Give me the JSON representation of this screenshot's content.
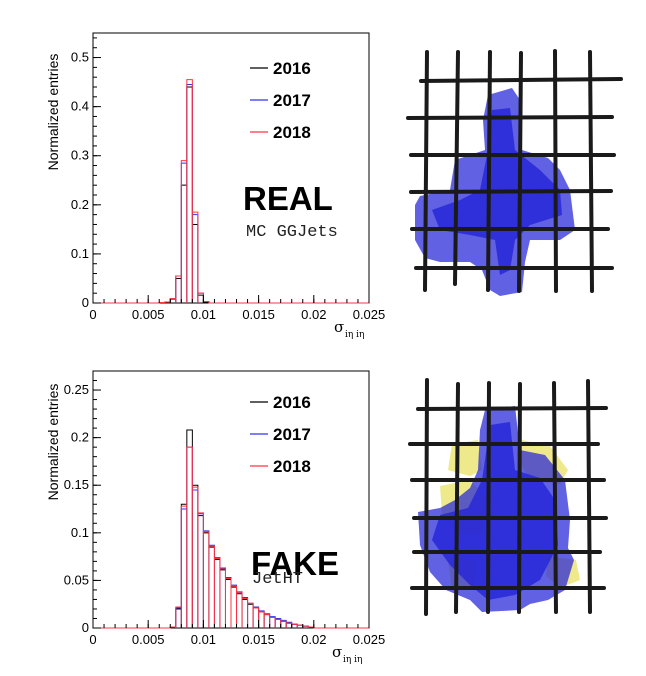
{
  "chart_data": [
    {
      "type": "histogram",
      "ylabel": "Normalized entries",
      "xlabel": "σ",
      "xlabel_sub": "iη iη",
      "xlim": [
        0,
        0.025
      ],
      "ylim": [
        0,
        0.55
      ],
      "yticks": [
        "0",
        "0.1",
        "0.2",
        "0.3",
        "0.4",
        "0.5"
      ],
      "xticks": [
        "0",
        "0.005",
        "0.01",
        "0.015",
        "0.02",
        "0.025"
      ],
      "annotation": "REAL",
      "annotation_sub": "MC GGJets",
      "bin_width": 0.0005,
      "series": [
        {
          "name": "2016",
          "color": "#000000",
          "bins": [
            [
              0.006,
              0.001
            ],
            [
              0.0065,
              0.002
            ],
            [
              0.007,
              0.008
            ],
            [
              0.0075,
              0.05
            ],
            [
              0.008,
              0.24
            ],
            [
              0.0085,
              0.44
            ],
            [
              0.009,
              0.16
            ],
            [
              0.0095,
              0.016
            ],
            [
              0.01,
              0.002
            ]
          ]
        },
        {
          "name": "2017",
          "color": "#3333ee",
          "bins": [
            [
              0.006,
              0.001
            ],
            [
              0.0065,
              0.002
            ],
            [
              0.007,
              0.009
            ],
            [
              0.0075,
              0.055
            ],
            [
              0.008,
              0.285
            ],
            [
              0.0085,
              0.445
            ],
            [
              0.009,
              0.18
            ],
            [
              0.0095,
              0.02
            ],
            [
              0.01,
              0.003
            ]
          ]
        },
        {
          "name": "2018",
          "color": "#ff3344",
          "bins": [
            [
              0.006,
              0.001
            ],
            [
              0.0065,
              0.002
            ],
            [
              0.007,
              0.009
            ],
            [
              0.0075,
              0.055
            ],
            [
              0.008,
              0.29
            ],
            [
              0.0085,
              0.455
            ],
            [
              0.009,
              0.185
            ],
            [
              0.0095,
              0.02
            ],
            [
              0.01,
              0.003
            ]
          ]
        }
      ]
    },
    {
      "type": "histogram",
      "ylabel": "Normalized entries",
      "xlabel": "σ",
      "xlabel_sub": "iη iη",
      "xlim": [
        0,
        0.025
      ],
      "ylim": [
        0,
        0.27
      ],
      "yticks": [
        "0",
        "0.05",
        "0.1",
        "0.15",
        "0.2",
        "0.25"
      ],
      "xticks": [
        "0",
        "0.005",
        "0.01",
        "0.015",
        "0.02",
        "0.025"
      ],
      "annotation": "FAKE",
      "annotation_sub": "JetHT",
      "bin_width": 0.0005,
      "series": [
        {
          "name": "2016",
          "color": "#000000",
          "bins": [
            [
              0.007,
              0.001
            ],
            [
              0.0075,
              0.02
            ],
            [
              0.008,
              0.13
            ],
            [
              0.0085,
              0.208
            ],
            [
              0.009,
              0.15
            ],
            [
              0.0095,
              0.118
            ],
            [
              0.01,
              0.1
            ],
            [
              0.0105,
              0.085
            ],
            [
              0.011,
              0.072
            ],
            [
              0.0115,
              0.061
            ],
            [
              0.012,
              0.051
            ],
            [
              0.0125,
              0.043
            ],
            [
              0.013,
              0.036
            ],
            [
              0.0135,
              0.03
            ],
            [
              0.014,
              0.025
            ],
            [
              0.0145,
              0.021
            ],
            [
              0.015,
              0.017
            ],
            [
              0.0155,
              0.014
            ],
            [
              0.016,
              0.011
            ],
            [
              0.0165,
              0.009
            ],
            [
              0.017,
              0.007
            ],
            [
              0.0175,
              0.005
            ],
            [
              0.018,
              0.004
            ],
            [
              0.0185,
              0.003
            ],
            [
              0.019,
              0.002
            ],
            [
              0.0195,
              0.001
            ]
          ]
        },
        {
          "name": "2017",
          "color": "#3333ee",
          "bins": [
            [
              0.007,
              0.001
            ],
            [
              0.0075,
              0.021
            ],
            [
              0.008,
              0.125
            ],
            [
              0.0085,
              0.19
            ],
            [
              0.009,
              0.145
            ],
            [
              0.0095,
              0.12
            ],
            [
              0.01,
              0.102
            ],
            [
              0.0105,
              0.087
            ],
            [
              0.011,
              0.074
            ],
            [
              0.0115,
              0.063
            ],
            [
              0.012,
              0.053
            ],
            [
              0.0125,
              0.045
            ],
            [
              0.013,
              0.038
            ],
            [
              0.0135,
              0.032
            ],
            [
              0.014,
              0.026
            ],
            [
              0.0145,
              0.022
            ],
            [
              0.015,
              0.018
            ],
            [
              0.0155,
              0.015
            ],
            [
              0.016,
              0.012
            ],
            [
              0.0165,
              0.01
            ],
            [
              0.017,
              0.008
            ],
            [
              0.0175,
              0.006
            ],
            [
              0.018,
              0.004
            ],
            [
              0.0185,
              0.003
            ],
            [
              0.019,
              0.002
            ],
            [
              0.0195,
              0.001
            ]
          ]
        },
        {
          "name": "2018",
          "color": "#ff3344",
          "bins": [
            [
              0.007,
              0.001
            ],
            [
              0.0075,
              0.022
            ],
            [
              0.008,
              0.128
            ],
            [
              0.0085,
              0.19
            ],
            [
              0.009,
              0.148
            ],
            [
              0.0095,
              0.121
            ],
            [
              0.01,
              0.101
            ],
            [
              0.0105,
              0.086
            ],
            [
              0.011,
              0.073
            ],
            [
              0.0115,
              0.062
            ],
            [
              0.012,
              0.052
            ],
            [
              0.0125,
              0.044
            ],
            [
              0.013,
              0.037
            ],
            [
              0.0135,
              0.031
            ],
            [
              0.014,
              0.026
            ],
            [
              0.0145,
              0.021
            ],
            [
              0.015,
              0.017
            ],
            [
              0.0155,
              0.014
            ],
            [
              0.016,
              0.011
            ],
            [
              0.0165,
              0.009
            ],
            [
              0.017,
              0.007
            ],
            [
              0.0175,
              0.005
            ],
            [
              0.018,
              0.004
            ],
            [
              0.0185,
              0.003
            ],
            [
              0.019,
              0.002
            ],
            [
              0.0195,
              0.001
            ]
          ]
        }
      ]
    }
  ],
  "images": [
    {
      "name": "real-grid-image",
      "grid_color": "#1a1a1a",
      "fill_color": "#2424d8"
    },
    {
      "name": "fake-grid-image",
      "grid_color": "#1a1a1a",
      "fill_color": "#2424d8",
      "secondary_color": "#e8e05a"
    }
  ]
}
